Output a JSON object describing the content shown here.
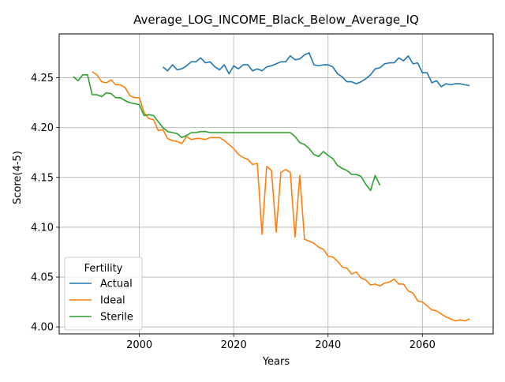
{
  "chart_data": {
    "type": "line",
    "title": "Average_LOG_INCOME_Black_Below_Average_IQ",
    "xlabel": "Years",
    "ylabel": "Score(4-5)",
    "xlim": [
      1983,
      2075
    ],
    "ylim": [
      3.993,
      4.294
    ],
    "xticks": [
      2000,
      2020,
      2040,
      2060
    ],
    "xtick_labels": [
      "2000",
      "2020",
      "2040",
      "2060"
    ],
    "yticks": [
      4.0,
      4.05,
      4.1,
      4.15,
      4.2,
      4.25
    ],
    "ytick_labels": [
      "4.00",
      "4.05",
      "4.10",
      "4.15",
      "4.20",
      "4.25"
    ],
    "grid": true,
    "legend": {
      "title": "Fertility",
      "placement": "lower-left"
    },
    "series": [
      {
        "name": "Actual",
        "color": "#1f77b4",
        "points": [
          [
            2005,
            4.261
          ],
          [
            2006,
            4.257
          ],
          [
            2007,
            4.263
          ],
          [
            2008,
            4.258
          ],
          [
            2009,
            4.259
          ],
          [
            2010,
            4.262
          ],
          [
            2011,
            4.266
          ],
          [
            2012,
            4.266
          ],
          [
            2013,
            4.27
          ],
          [
            2014,
            4.265
          ],
          [
            2015,
            4.266
          ],
          [
            2016,
            4.261
          ],
          [
            2017,
            4.258
          ],
          [
            2018,
            4.263
          ],
          [
            2019,
            4.254
          ],
          [
            2020,
            4.262
          ],
          [
            2021,
            4.259
          ],
          [
            2022,
            4.263
          ],
          [
            2023,
            4.263
          ],
          [
            2024,
            4.257
          ],
          [
            2025,
            4.259
          ],
          [
            2026,
            4.257
          ],
          [
            2027,
            4.261
          ],
          [
            2028,
            4.262
          ],
          [
            2029,
            4.264
          ],
          [
            2030,
            4.266
          ],
          [
            2031,
            4.266
          ],
          [
            2032,
            4.272
          ],
          [
            2033,
            4.268
          ],
          [
            2034,
            4.269
          ],
          [
            2035,
            4.273
          ],
          [
            2036,
            4.275
          ],
          [
            2037,
            4.263
          ],
          [
            2038,
            4.262
          ],
          [
            2039,
            4.263
          ],
          [
            2040,
            4.263
          ],
          [
            2041,
            4.261
          ],
          [
            2042,
            4.254
          ],
          [
            2043,
            4.251
          ],
          [
            2044,
            4.246
          ],
          [
            2045,
            4.246
          ],
          [
            2046,
            4.244
          ],
          [
            2047,
            4.246
          ],
          [
            2048,
            4.249
          ],
          [
            2049,
            4.253
          ],
          [
            2050,
            4.259
          ],
          [
            2051,
            4.26
          ],
          [
            2052,
            4.264
          ],
          [
            2053,
            4.265
          ],
          [
            2054,
            4.265
          ],
          [
            2055,
            4.27
          ],
          [
            2056,
            4.267
          ],
          [
            2057,
            4.272
          ],
          [
            2058,
            4.264
          ],
          [
            2059,
            4.265
          ],
          [
            2060,
            4.255
          ],
          [
            2061,
            4.255
          ],
          [
            2062,
            4.245
          ],
          [
            2063,
            4.247
          ],
          [
            2064,
            4.241
          ],
          [
            2065,
            4.244
          ],
          [
            2066,
            4.243
          ],
          [
            2067,
            4.244
          ],
          [
            2068,
            4.244
          ],
          [
            2069,
            4.243
          ],
          [
            2070,
            4.242
          ]
        ]
      },
      {
        "name": "Ideal",
        "color": "#ff7f0e",
        "points": [
          [
            1990,
            4.256
          ],
          [
            1991,
            4.253
          ],
          [
            1992,
            4.246
          ],
          [
            1993,
            4.245
          ],
          [
            1994,
            4.248
          ],
          [
            1995,
            4.243
          ],
          [
            1996,
            4.243
          ],
          [
            1997,
            4.24
          ],
          [
            1998,
            4.232
          ],
          [
            1999,
            4.23
          ],
          [
            2000,
            4.23
          ],
          [
            2001,
            4.215
          ],
          [
            2002,
            4.209
          ],
          [
            2003,
            4.208
          ],
          [
            2004,
            4.197
          ],
          [
            2005,
            4.198
          ],
          [
            2006,
            4.189
          ],
          [
            2007,
            4.187
          ],
          [
            2008,
            4.186
          ],
          [
            2009,
            4.184
          ],
          [
            2010,
            4.191
          ],
          [
            2011,
            4.188
          ],
          [
            2012,
            4.189
          ],
          [
            2013,
            4.189
          ],
          [
            2014,
            4.188
          ],
          [
            2015,
            4.19
          ],
          [
            2016,
            4.19
          ],
          [
            2017,
            4.19
          ],
          [
            2018,
            4.187
          ],
          [
            2019,
            4.183
          ],
          [
            2020,
            4.179
          ],
          [
            2021,
            4.173
          ],
          [
            2022,
            4.17
          ],
          [
            2023,
            4.168
          ],
          [
            2024,
            4.163
          ],
          [
            2025,
            4.164
          ],
          [
            2026,
            4.093
          ],
          [
            2027,
            4.161
          ],
          [
            2028,
            4.157
          ],
          [
            2029,
            4.095
          ],
          [
            2030,
            4.155
          ],
          [
            2031,
            4.158
          ],
          [
            2032,
            4.155
          ],
          [
            2033,
            4.09
          ],
          [
            2034,
            4.152
          ],
          [
            2035,
            4.088
          ],
          [
            2036,
            4.086
          ],
          [
            2037,
            4.084
          ],
          [
            2038,
            4.08
          ],
          [
            2039,
            4.078
          ],
          [
            2040,
            4.071
          ],
          [
            2041,
            4.07
          ],
          [
            2042,
            4.066
          ],
          [
            2043,
            4.06
          ],
          [
            2044,
            4.059
          ],
          [
            2045,
            4.053
          ],
          [
            2046,
            4.055
          ],
          [
            2047,
            4.049
          ],
          [
            2048,
            4.047
          ],
          [
            2049,
            4.042
          ],
          [
            2050,
            4.043
          ],
          [
            2051,
            4.041
          ],
          [
            2052,
            4.044
          ],
          [
            2053,
            4.045
          ],
          [
            2054,
            4.048
          ],
          [
            2055,
            4.043
          ],
          [
            2056,
            4.043
          ],
          [
            2057,
            4.036
          ],
          [
            2058,
            4.034
          ],
          [
            2059,
            4.026
          ],
          [
            2060,
            4.025
          ],
          [
            2061,
            4.021
          ],
          [
            2062,
            4.017
          ],
          [
            2063,
            4.016
          ],
          [
            2064,
            4.013
          ],
          [
            2065,
            4.01
          ],
          [
            2066,
            4.008
          ],
          [
            2067,
            4.006
          ],
          [
            2068,
            4.007
          ],
          [
            2069,
            4.006
          ],
          [
            2070,
            4.008
          ]
        ]
      },
      {
        "name": "Sterile",
        "color": "#2ca02c",
        "points": [
          [
            1986,
            4.251
          ],
          [
            1987,
            4.247
          ],
          [
            1988,
            4.253
          ],
          [
            1989,
            4.253
          ],
          [
            1990,
            4.233
          ],
          [
            1991,
            4.233
          ],
          [
            1992,
            4.231
          ],
          [
            1993,
            4.235
          ],
          [
            1994,
            4.234
          ],
          [
            1995,
            4.23
          ],
          [
            1996,
            4.23
          ],
          [
            1997,
            4.227
          ],
          [
            1998,
            4.225
          ],
          [
            1999,
            4.224
          ],
          [
            2000,
            4.223
          ],
          [
            2001,
            4.212
          ],
          [
            2002,
            4.213
          ],
          [
            2003,
            4.212
          ],
          [
            2004,
            4.206
          ],
          [
            2005,
            4.2
          ],
          [
            2006,
            4.196
          ],
          [
            2007,
            4.195
          ],
          [
            2008,
            4.194
          ],
          [
            2009,
            4.19
          ],
          [
            2010,
            4.192
          ],
          [
            2011,
            4.195
          ],
          [
            2012,
            4.195
          ],
          [
            2013,
            4.196
          ],
          [
            2014,
            4.196
          ],
          [
            2015,
            4.195
          ],
          [
            2016,
            4.195
          ],
          [
            2017,
            4.195
          ],
          [
            2018,
            4.195
          ],
          [
            2019,
            4.195
          ],
          [
            2020,
            4.195
          ],
          [
            2021,
            4.195
          ],
          [
            2022,
            4.195
          ],
          [
            2023,
            4.195
          ],
          [
            2024,
            4.195
          ],
          [
            2025,
            4.195
          ],
          [
            2026,
            4.195
          ],
          [
            2027,
            4.195
          ],
          [
            2028,
            4.195
          ],
          [
            2029,
            4.195
          ],
          [
            2030,
            4.195
          ],
          [
            2031,
            4.195
          ],
          [
            2032,
            4.195
          ],
          [
            2033,
            4.191
          ],
          [
            2034,
            4.185
          ],
          [
            2035,
            4.183
          ],
          [
            2036,
            4.179
          ],
          [
            2037,
            4.173
          ],
          [
            2038,
            4.171
          ],
          [
            2039,
            4.176
          ],
          [
            2040,
            4.172
          ],
          [
            2041,
            4.169
          ],
          [
            2042,
            4.162
          ],
          [
            2043,
            4.159
          ],
          [
            2044,
            4.157
          ],
          [
            2045,
            4.153
          ],
          [
            2046,
            4.153
          ],
          [
            2047,
            4.151
          ],
          [
            2048,
            4.143
          ],
          [
            2049,
            4.137
          ],
          [
            2050,
            4.152
          ],
          [
            2051,
            4.142
          ]
        ]
      }
    ]
  }
}
